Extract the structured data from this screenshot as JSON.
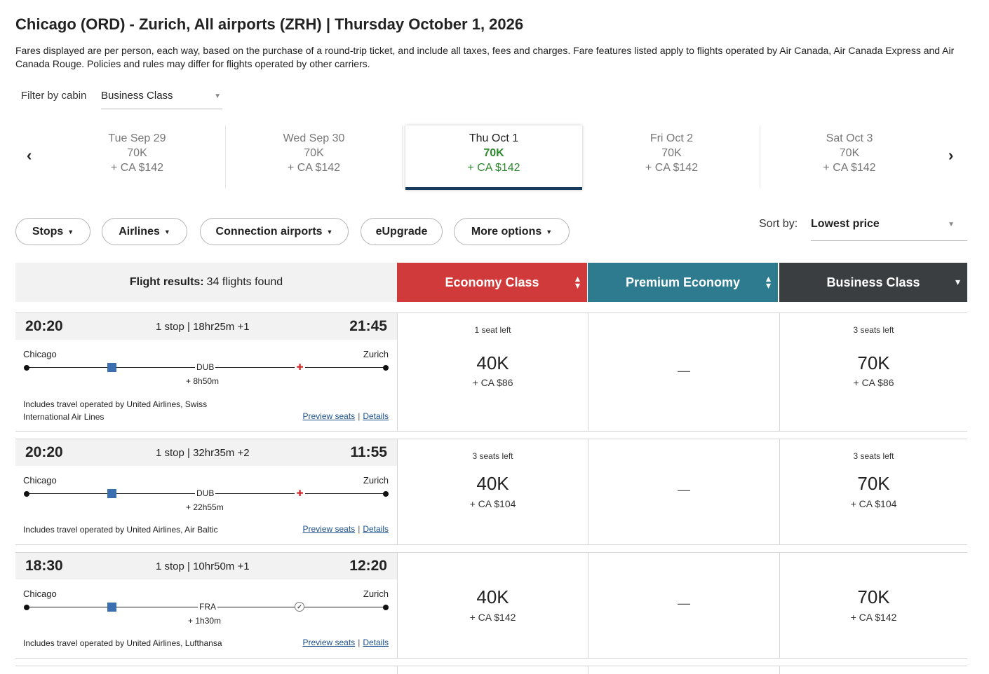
{
  "header": {
    "title": "Chicago (ORD) - Zurich, All airports (ZRH)  |  Thursday October 1, 2026",
    "disclaimer": "Fares displayed are per person, each way, based on the purchase of a round-trip ticket, and include all taxes, fees and charges. Fare features listed apply to flights operated by Air Canada, Air Canada Express and Air Canada Rouge. Policies and rules may differ for flights operated by other carriers."
  },
  "filter": {
    "label": "Filter by cabin",
    "value": "Business Class"
  },
  "dates": [
    {
      "date": "Tue Sep 29",
      "points": "70K",
      "cash": "+ CA $142"
    },
    {
      "date": "Wed Sep 30",
      "points": "70K",
      "cash": "+ CA $142"
    },
    {
      "date": "Thu Oct 1",
      "points": "70K",
      "cash": "+ CA $142"
    },
    {
      "date": "Fri Oct 2",
      "points": "70K",
      "cash": "+ CA $142"
    },
    {
      "date": "Sat Oct 3",
      "points": "70K",
      "cash": "+ CA $142"
    }
  ],
  "filters_bar": {
    "stops": "Stops",
    "airlines": "Airlines",
    "connection_airports": "Connection airports",
    "eupgrade": "eUpgrade",
    "more_options": "More options"
  },
  "sort": {
    "label": "Sort by:",
    "value": "Lowest price"
  },
  "results_header": {
    "label": "Flight results:",
    "count": "34 flights found",
    "economy": "Economy Class",
    "premium": "Premium Economy",
    "business": "Business Class"
  },
  "flights": [
    {
      "depart": "20:20",
      "arrive": "21:45",
      "stops": "1 stop | 18hr25m +1",
      "origin": "Chicago",
      "destination": "Zurich",
      "connection": "DUB",
      "layover": "+ 8h50m",
      "operated": "Includes travel operated by United Airlines, Swiss International Air Lines",
      "preview": "Preview seats",
      "details": "Details",
      "economy": {
        "seats": "1 seat left",
        "points": "40K",
        "cash": "+ CA $86"
      },
      "premium": {
        "dash": "—"
      },
      "business": {
        "seats": "3 seats left",
        "points": "70K",
        "cash": "+ CA $86"
      }
    },
    {
      "depart": "20:20",
      "arrive": "11:55",
      "stops": "1 stop | 32hr35m +2",
      "origin": "Chicago",
      "destination": "Zurich",
      "connection": "DUB",
      "layover": "+ 22h55m",
      "operated": "Includes travel operated by United Airlines, Air Baltic",
      "preview": "Preview seats",
      "details": "Details",
      "economy": {
        "seats": "3 seats left",
        "points": "40K",
        "cash": "+ CA $104"
      },
      "premium": {
        "dash": "—"
      },
      "business": {
        "seats": "3 seats left",
        "points": "70K",
        "cash": "+ CA $104"
      }
    },
    {
      "depart": "18:30",
      "arrive": "12:20",
      "stops": "1 stop | 10hr50m +1",
      "origin": "Chicago",
      "destination": "Zurich",
      "connection": "FRA",
      "layover": "+ 1h30m",
      "operated": "Includes travel operated by United Airlines, Lufthansa",
      "preview": "Preview seats",
      "details": "Details",
      "economy": {
        "points": "40K",
        "cash": "+ CA $142"
      },
      "premium": {
        "dash": "—"
      },
      "business": {
        "points": "70K",
        "cash": "+ CA $142"
      }
    }
  ],
  "colors": {
    "economy": "#d03a3a",
    "premium": "#2e7a8f",
    "business": "#3a3e41",
    "selected_price": "#2e8b2e",
    "link": "#1a4f8a"
  }
}
